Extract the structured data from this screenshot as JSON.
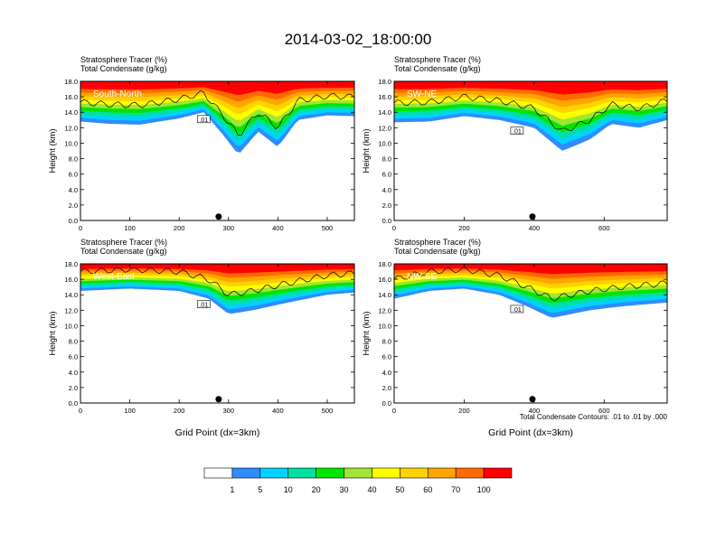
{
  "title": "2014-03-02_18:00:00",
  "footnote": "Total Condensate Contours: .01 to .01 by .000",
  "colorbar": {
    "colors": [
      "#ffffff",
      "#2f8cff",
      "#00d2ff",
      "#00e0a0",
      "#00e600",
      "#a0e632",
      "#ffff00",
      "#ffd200",
      "#ffa500",
      "#ff6a00",
      "#ff0000"
    ],
    "labels": [
      "1",
      "5",
      "10",
      "20",
      "30",
      "40",
      "50",
      "60",
      "70",
      "100"
    ]
  },
  "chart_data": [
    {
      "type": "heatmap",
      "panel_label": "South-North",
      "line1": "Stratosphere Tracer   (%)",
      "line2": "Total Condensate   (g/kg)",
      "ylabel": "Height (km)",
      "xlabel": "",
      "xlim": [
        0,
        555
      ],
      "ylim": [
        0,
        18
      ],
      "xticks": [
        "0",
        "100",
        "200",
        "300",
        "400",
        "500"
      ],
      "yticks": [
        "0.0",
        "2.0",
        "4.0",
        "6.0",
        "8.0",
        "10.0",
        "12.0",
        "14.0",
        "16.0",
        "18.0"
      ],
      "contour_label": ".01",
      "marker_x": 280,
      "tracer_front_km": [
        {
          "x": 0,
          "h": 12.8
        },
        {
          "x": 60,
          "h": 12.5
        },
        {
          "x": 120,
          "h": 12.4
        },
        {
          "x": 200,
          "h": 13.2
        },
        {
          "x": 250,
          "h": 14.0
        },
        {
          "x": 290,
          "h": 11.0
        },
        {
          "x": 320,
          "h": 8.5
        },
        {
          "x": 360,
          "h": 11.5
        },
        {
          "x": 400,
          "h": 9.5
        },
        {
          "x": 440,
          "h": 13.0
        },
        {
          "x": 500,
          "h": 13.6
        },
        {
          "x": 555,
          "h": 13.5
        }
      ]
    },
    {
      "type": "heatmap",
      "panel_label": "SW-NE",
      "line1": "Stratosphere Tracer   (%)",
      "line2": "Total Condensate   (g/kg)",
      "ylabel": "Height (km)",
      "xlabel": "",
      "xlim": [
        0,
        780
      ],
      "ylim": [
        0,
        18
      ],
      "xticks": [
        "0",
        "200",
        "400",
        "600"
      ],
      "yticks": [
        "0.0",
        "2.0",
        "4.0",
        "6.0",
        "8.0",
        "10.0",
        "12.0",
        "14.0",
        "16.0",
        "18.0"
      ],
      "contour_label": ".01",
      "marker_x": 395,
      "tracer_front_km": [
        {
          "x": 0,
          "h": 12.7
        },
        {
          "x": 100,
          "h": 12.8
        },
        {
          "x": 200,
          "h": 13.5
        },
        {
          "x": 300,
          "h": 13.0
        },
        {
          "x": 400,
          "h": 12.0
        },
        {
          "x": 480,
          "h": 9.0
        },
        {
          "x": 560,
          "h": 10.5
        },
        {
          "x": 620,
          "h": 12.5
        },
        {
          "x": 700,
          "h": 12.0
        },
        {
          "x": 780,
          "h": 13.0
        }
      ]
    },
    {
      "type": "heatmap",
      "panel_label": "West-East",
      "line1": "Stratosphere Tracer   (%)",
      "line2": "Total Condensate   (g/kg)",
      "ylabel": "Height (km)",
      "xlabel": "Grid Point (dx=3km)",
      "xlim": [
        0,
        555
      ],
      "ylim": [
        0,
        18
      ],
      "xticks": [
        "0",
        "100",
        "200",
        "300",
        "400",
        "500"
      ],
      "yticks": [
        "0.0",
        "2.0",
        "4.0",
        "6.0",
        "8.0",
        "10.0",
        "12.0",
        "14.0",
        "16.0",
        "18.0"
      ],
      "contour_label": ".01",
      "marker_x": 280,
      "tracer_front_km": [
        {
          "x": 0,
          "h": 14.5
        },
        {
          "x": 100,
          "h": 14.8
        },
        {
          "x": 200,
          "h": 14.5
        },
        {
          "x": 260,
          "h": 13.5
        },
        {
          "x": 300,
          "h": 11.5
        },
        {
          "x": 350,
          "h": 12.0
        },
        {
          "x": 420,
          "h": 13.0
        },
        {
          "x": 500,
          "h": 14.0
        },
        {
          "x": 555,
          "h": 14.3
        }
      ]
    },
    {
      "type": "heatmap",
      "panel_label": "NW-SE",
      "line1": "Stratosphere Tracer   (%)",
      "line2": "Total Condensate   (g/kg)",
      "ylabel": "Height (km)",
      "xlabel": "Grid Point (dx=3km)",
      "xlim": [
        0,
        780
      ],
      "ylim": [
        0,
        18
      ],
      "xticks": [
        "0",
        "200",
        "400",
        "600"
      ],
      "yticks": [
        "0.0",
        "2.0",
        "4.0",
        "6.0",
        "8.0",
        "10.0",
        "12.0",
        "14.0",
        "16.0",
        "18.0"
      ],
      "contour_label": ".01",
      "marker_x": 395,
      "tracer_front_km": [
        {
          "x": 0,
          "h": 13.5
        },
        {
          "x": 100,
          "h": 14.5
        },
        {
          "x": 200,
          "h": 14.8
        },
        {
          "x": 300,
          "h": 14.0
        },
        {
          "x": 380,
          "h": 12.5
        },
        {
          "x": 450,
          "h": 11.0
        },
        {
          "x": 560,
          "h": 12.0
        },
        {
          "x": 650,
          "h": 12.5
        },
        {
          "x": 780,
          "h": 13.0
        }
      ]
    }
  ]
}
